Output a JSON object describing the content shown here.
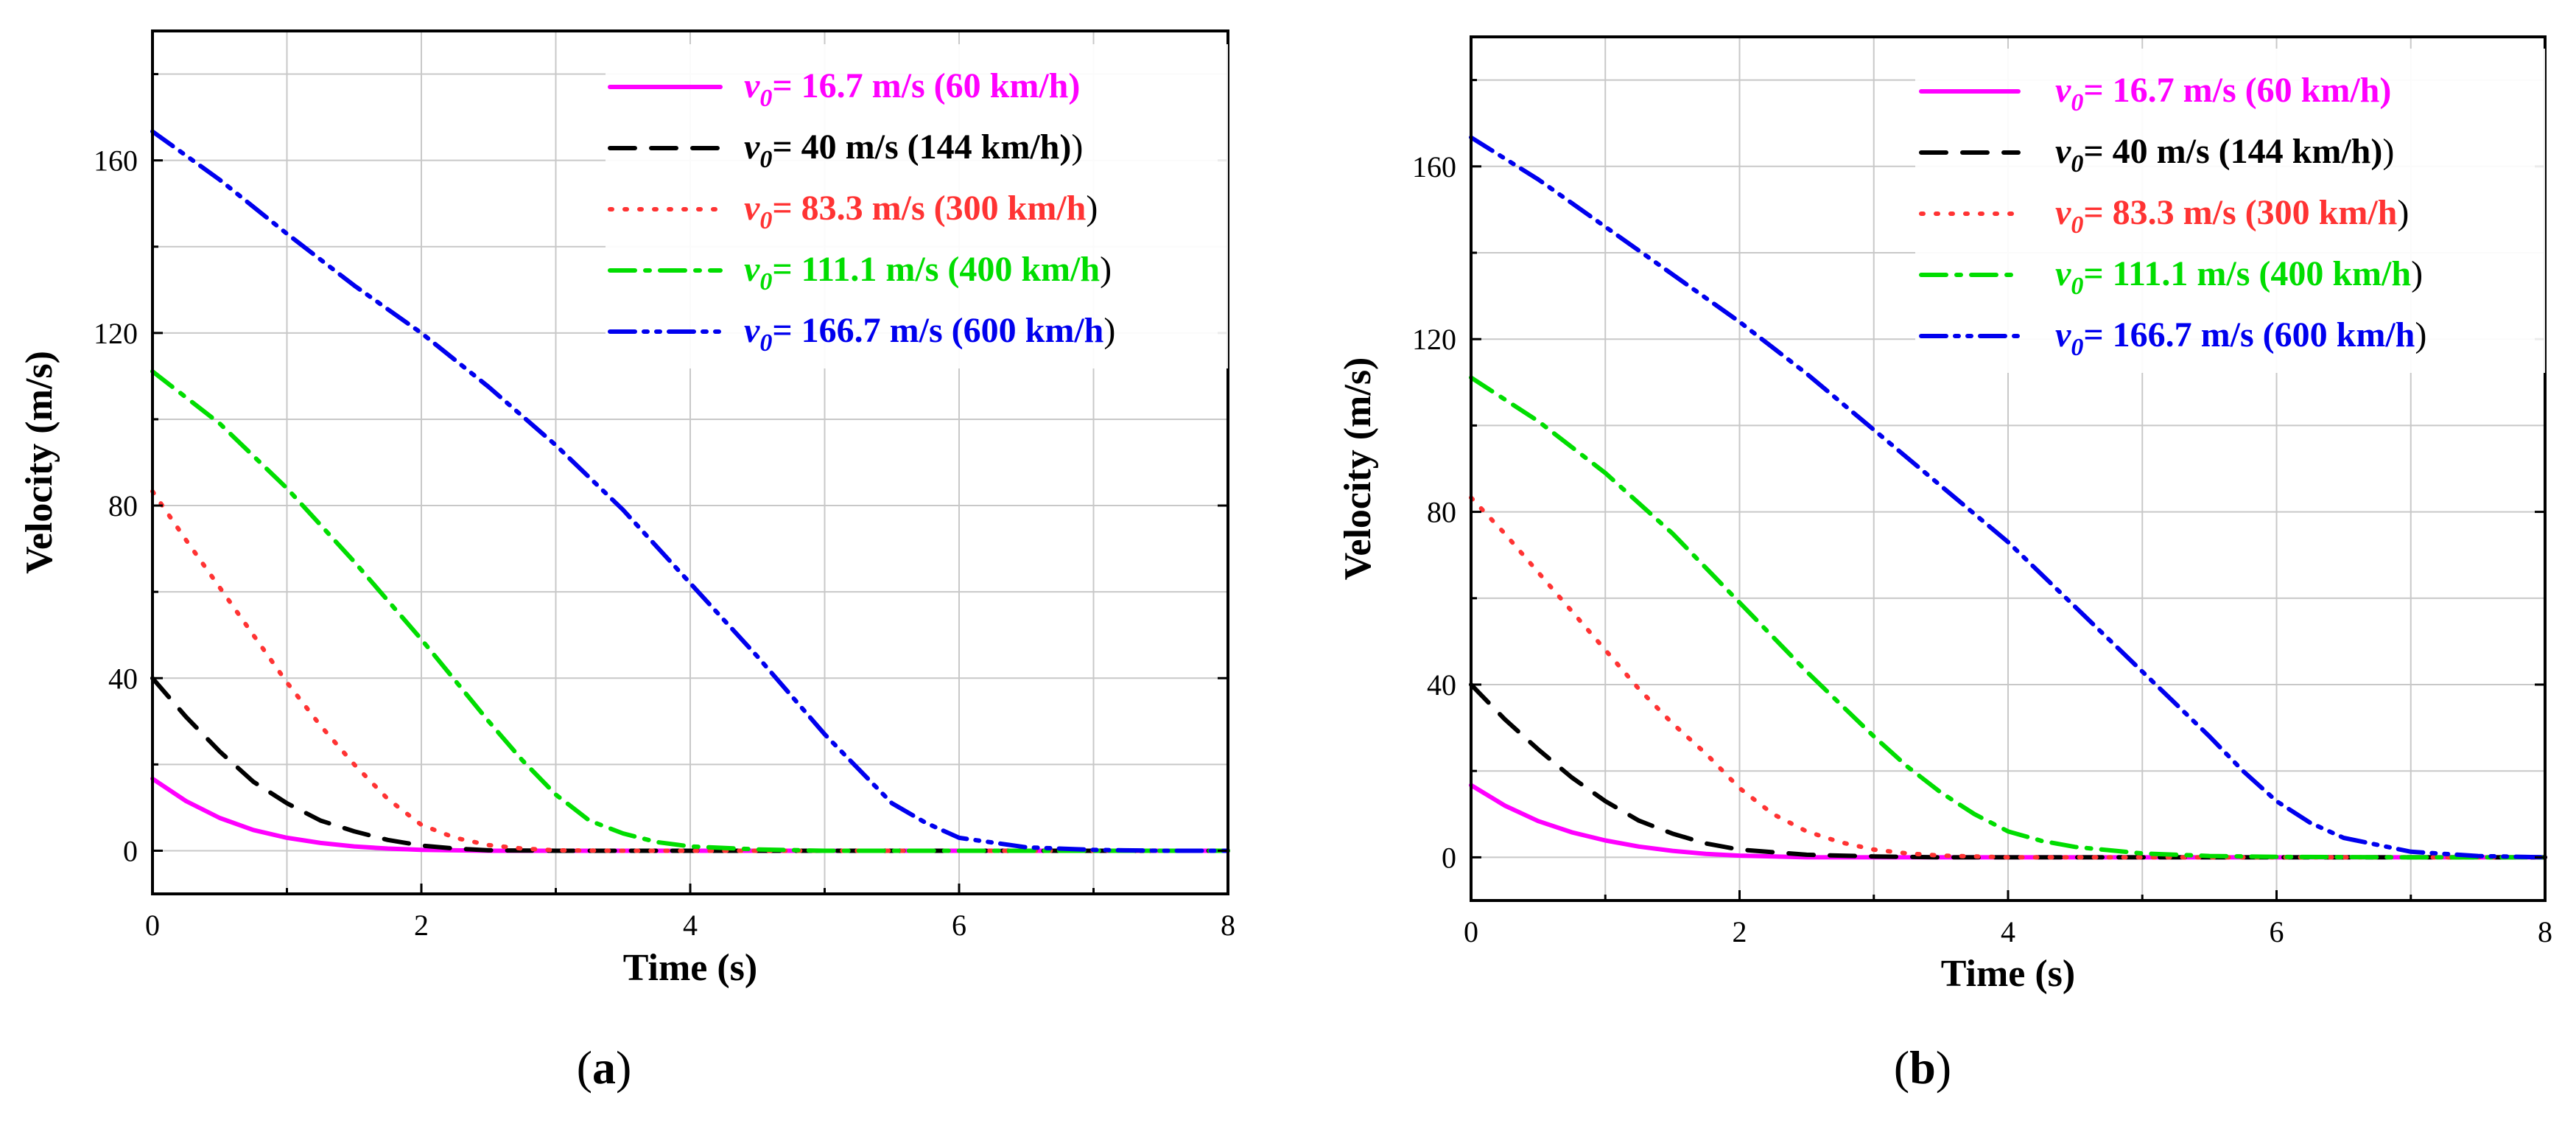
{
  "chart_data": [
    {
      "id": "a",
      "type": "line",
      "caption_letter": "a",
      "xlabel": "Time (s)",
      "ylabel": "Velocity (m/s)",
      "xlim": [
        0,
        8
      ],
      "ylim": [
        -10,
        190
      ],
      "xticks": [
        0,
        2,
        4,
        6,
        8
      ],
      "yticks": [
        0,
        40,
        80,
        120,
        160
      ],
      "grid": true,
      "legend_position": "top-right",
      "series": [
        {
          "name": "v0 = 16.7 m/s (60 km/h)",
          "label_sub": "0",
          "label_rest": "= 16.7 m/s (60 km/h)",
          "label_close": "",
          "color": "#ff00ff",
          "dash": "solid",
          "x": [
            0,
            0.25,
            0.5,
            0.75,
            1,
            1.25,
            1.5,
            1.75,
            2,
            2.5,
            3,
            4,
            5,
            6,
            7,
            8
          ],
          "y": [
            16.7,
            11.5,
            7.6,
            4.8,
            3.0,
            1.8,
            1.0,
            0.5,
            0.2,
            0,
            0,
            0,
            0,
            0,
            0,
            0
          ]
        },
        {
          "name": "v0 = 40 m/s (144 km/h)",
          "label_sub": "0",
          "label_rest": "= 40 m/s (144 km/h)",
          "label_close": ")",
          "color": "#000000",
          "dash": "dash",
          "x": [
            0,
            0.25,
            0.5,
            0.75,
            1,
            1.25,
            1.5,
            1.75,
            2,
            2.25,
            2.5,
            3,
            4,
            5,
            6,
            7,
            8
          ],
          "y": [
            40,
            31,
            23,
            16,
            11,
            7,
            4.5,
            2.5,
            1.2,
            0.5,
            0.1,
            0,
            0,
            0,
            0,
            0,
            0
          ]
        },
        {
          "name": "v0 = 83.3 m/s (300 km/h)",
          "label_sub": "0",
          "label_rest": "= 83.3 m/s (300 km/h",
          "label_close": ")",
          "color": "#ff3333",
          "dash": "dot",
          "x": [
            0,
            0.25,
            0.5,
            0.75,
            1,
            1.25,
            1.5,
            1.75,
            2,
            2.25,
            2.5,
            2.75,
            3,
            3.5,
            4,
            5,
            6,
            7,
            8
          ],
          "y": [
            83.3,
            72,
            61,
            50,
            39,
            29,
            20,
            12,
            6,
            3,
            1.3,
            0.5,
            0.1,
            0,
            0,
            0,
            0,
            0,
            0
          ]
        },
        {
          "name": "v0 = 111.1 m/s (400 km/h)",
          "label_sub": "0",
          "label_rest": "= 111.1 m/s (400 km/h",
          "label_close": ")",
          "color": "#00dd00",
          "dash": "dashdot",
          "x": [
            0,
            0.5,
            1,
            1.5,
            2,
            2.5,
            2.75,
            3,
            3.25,
            3.5,
            3.75,
            4,
            4.5,
            5,
            6,
            7,
            8
          ],
          "y": [
            111.1,
            99,
            84,
            67,
            49,
            30,
            21,
            13,
            7,
            4,
            2,
            1,
            0.3,
            0,
            0,
            0,
            0
          ]
        },
        {
          "name": "v0 = 166.7 m/s (600 km/h)",
          "label_sub": "0",
          "label_rest": "= 166.7 m/s (600 km/h",
          "label_close": ")",
          "color": "#0000ee",
          "dash": "dashdotdot",
          "x": [
            0,
            0.5,
            1,
            1.5,
            2,
            2.5,
            3,
            3.5,
            4,
            4.5,
            5,
            5.25,
            5.5,
            5.75,
            6,
            6.5,
            7,
            7.5,
            8
          ],
          "y": [
            166.7,
            155.5,
            143,
            131,
            120,
            107.5,
            94,
            79,
            62,
            45,
            27,
            19,
            11,
            6.5,
            3,
            0.8,
            0.2,
            0,
            0
          ]
        }
      ]
    },
    {
      "id": "b",
      "type": "line",
      "caption_letter": "b",
      "xlabel": "Time (s)",
      "ylabel": "Velocity (m/s)",
      "xlim": [
        0,
        8
      ],
      "ylim": [
        -10,
        190
      ],
      "xticks": [
        0,
        2,
        4,
        6,
        8
      ],
      "yticks": [
        0,
        40,
        80,
        120,
        160
      ],
      "grid": true,
      "legend_position": "top-right",
      "series": [
        {
          "name": "v0 = 16.7 m/s (60 km/h)",
          "label_sub": "0",
          "label_rest": "= 16.7 m/s (60 km/h)",
          "label_close": "",
          "color": "#ff00ff",
          "dash": "solid",
          "x": [
            0,
            0.25,
            0.5,
            0.75,
            1,
            1.25,
            1.5,
            1.75,
            2,
            2.5,
            3,
            4,
            5,
            6,
            7,
            8
          ],
          "y": [
            16.7,
            12,
            8.4,
            5.8,
            3.9,
            2.5,
            1.5,
            0.8,
            0.4,
            0,
            0,
            0,
            0,
            0,
            0,
            0
          ]
        },
        {
          "name": "v0 = 40 m/s (144 km/h)",
          "label_sub": "0",
          "label_rest": "= 40 m/s (144 km/h)",
          "label_close": ")",
          "color": "#000000",
          "dash": "dash",
          "x": [
            0,
            0.25,
            0.5,
            0.75,
            1,
            1.25,
            1.5,
            1.75,
            2,
            2.5,
            3,
            3.5,
            4,
            5,
            6,
            7,
            8
          ],
          "y": [
            40,
            32,
            25,
            18.5,
            13,
            8.5,
            5.5,
            3.2,
            1.8,
            0.6,
            0.2,
            0,
            0,
            0,
            0,
            0,
            0
          ]
        },
        {
          "name": "v0 = 83.3 m/s (300 km/h)",
          "label_sub": "0",
          "label_rest": "= 83.3 m/s (300 km/h",
          "label_close": ")",
          "color": "#ff3333",
          "dash": "dot",
          "x": [
            0,
            0.25,
            0.5,
            0.75,
            1,
            1.25,
            1.5,
            1.75,
            2,
            2.25,
            2.5,
            2.75,
            3,
            3.25,
            3.5,
            4,
            5,
            6,
            7,
            8
          ],
          "y": [
            83.3,
            75,
            66,
            57,
            48,
            39,
            31,
            24,
            16,
            10,
            6,
            3.5,
            1.8,
            0.9,
            0.4,
            0,
            0,
            0,
            0,
            0
          ]
        },
        {
          "name": "v0 = 111.1 m/s (400 km/h)",
          "label_sub": "0",
          "label_rest": "= 111.1 m/s (400 km/h",
          "label_close": ")",
          "color": "#00dd00",
          "dash": "dashdot",
          "x": [
            0,
            0.5,
            1,
            1.5,
            2,
            2.5,
            3,
            3.25,
            3.5,
            3.75,
            4,
            4.25,
            4.5,
            5,
            5.5,
            6,
            7,
            8
          ],
          "y": [
            111.1,
            101,
            89,
            75,
            59,
            43,
            28,
            21,
            15,
            10,
            6,
            3.8,
            2.4,
            0.9,
            0.3,
            0.1,
            0,
            0
          ]
        },
        {
          "name": "v0 = 166.7 m/s (600 km/h)",
          "label_sub": "0",
          "label_rest": "= 166.7 m/s (600 km/h",
          "label_close": ")",
          "color": "#0000ee",
          "dash": "dashdotdot",
          "x": [
            0,
            0.5,
            1,
            1.5,
            2,
            2.5,
            3,
            3.5,
            4,
            4.5,
            5,
            5.5,
            5.75,
            6,
            6.25,
            6.5,
            7,
            7.5,
            8
          ],
          "y": [
            166.7,
            157,
            146,
            135,
            124,
            112,
            99,
            86,
            73,
            58,
            43,
            28,
            20,
            13,
            8,
            4.5,
            1.3,
            0.3,
            0
          ]
        }
      ]
    }
  ]
}
